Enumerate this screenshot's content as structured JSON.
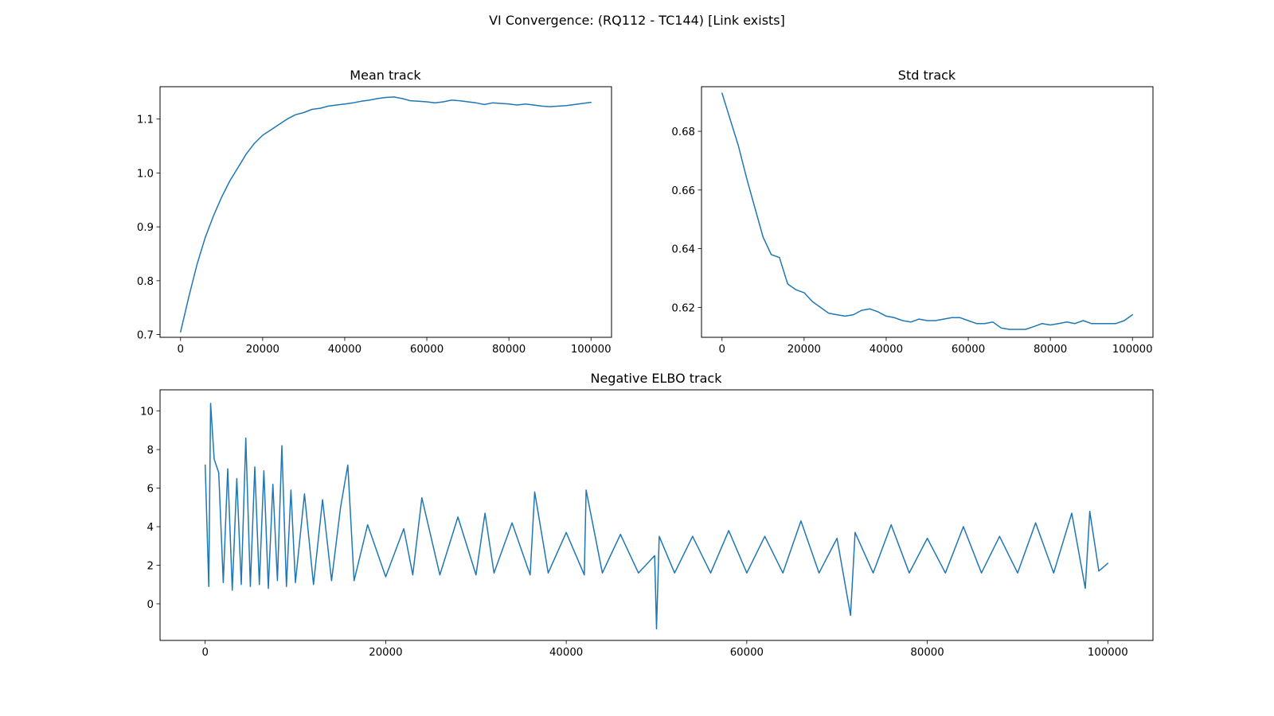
{
  "figure": {
    "title": "VI Convergence: (RQ112 - TC144) [Link exists]",
    "line_color": "#1f77b4",
    "background": "#ffffff"
  },
  "chart_data": [
    {
      "type": "line",
      "title": "Mean track",
      "xlabel": "",
      "ylabel": "",
      "xlim": [
        -5000,
        105000
      ],
      "ylim": [
        0.695,
        1.16
      ],
      "xticks": [
        0,
        20000,
        40000,
        60000,
        80000,
        100000
      ],
      "xtick_labels": [
        "0",
        "20000",
        "40000",
        "60000",
        "80000",
        "100000"
      ],
      "yticks": [
        0.7,
        0.8,
        0.9,
        1.0,
        1.1
      ],
      "ytick_labels": [
        "0.7",
        "0.8",
        "0.9",
        "1.0",
        "1.1"
      ],
      "grid": false,
      "series": [
        {
          "x": [
            0,
            2000,
            4000,
            6000,
            8000,
            10000,
            12000,
            14000,
            16000,
            18000,
            20000,
            22000,
            24000,
            26000,
            28000,
            30000,
            32000,
            34000,
            36000,
            38000,
            40000,
            42000,
            44000,
            46000,
            48000,
            50000,
            52000,
            54000,
            56000,
            58000,
            60000,
            62000,
            64000,
            66000,
            68000,
            70000,
            72000,
            74000,
            76000,
            78000,
            80000,
            82000,
            84000,
            86000,
            88000,
            90000,
            92000,
            94000,
            96000,
            98000,
            100000
          ],
          "y": [
            0.705,
            0.77,
            0.83,
            0.88,
            0.92,
            0.955,
            0.985,
            1.01,
            1.035,
            1.055,
            1.07,
            1.08,
            1.09,
            1.1,
            1.108,
            1.112,
            1.118,
            1.12,
            1.124,
            1.126,
            1.128,
            1.13,
            1.133,
            1.135,
            1.138,
            1.14,
            1.141,
            1.138,
            1.134,
            1.133,
            1.132,
            1.13,
            1.132,
            1.135,
            1.134,
            1.132,
            1.13,
            1.127,
            1.13,
            1.129,
            1.128,
            1.126,
            1.128,
            1.126,
            1.124,
            1.123,
            1.124,
            1.125,
            1.127,
            1.129,
            1.131
          ]
        }
      ]
    },
    {
      "type": "line",
      "title": "Std track",
      "xlabel": "",
      "ylabel": "",
      "xlim": [
        -5000,
        105000
      ],
      "ylim": [
        0.6098,
        0.6952
      ],
      "xticks": [
        0,
        20000,
        40000,
        60000,
        80000,
        100000
      ],
      "xtick_labels": [
        "0",
        "20000",
        "40000",
        "60000",
        "80000",
        "100000"
      ],
      "yticks": [
        0.62,
        0.64,
        0.66,
        0.68
      ],
      "ytick_labels": [
        "0.62",
        "0.64",
        "0.66",
        "0.68"
      ],
      "grid": false,
      "series": [
        {
          "x": [
            0,
            2000,
            4000,
            6000,
            8000,
            10000,
            12000,
            14000,
            16000,
            18000,
            20000,
            22000,
            24000,
            26000,
            28000,
            30000,
            32000,
            34000,
            36000,
            38000,
            40000,
            42000,
            44000,
            46000,
            48000,
            50000,
            52000,
            54000,
            56000,
            58000,
            60000,
            62000,
            64000,
            66000,
            68000,
            70000,
            72000,
            74000,
            76000,
            78000,
            80000,
            82000,
            84000,
            86000,
            88000,
            90000,
            92000,
            94000,
            96000,
            98000,
            100000
          ],
          "y": [
            0.693,
            0.684,
            0.675,
            0.664,
            0.654,
            0.644,
            0.638,
            0.637,
            0.628,
            0.626,
            0.625,
            0.622,
            0.62,
            0.618,
            0.6175,
            0.617,
            0.6175,
            0.619,
            0.6195,
            0.6185,
            0.617,
            0.6165,
            0.6155,
            0.615,
            0.616,
            0.6155,
            0.6155,
            0.616,
            0.6165,
            0.6165,
            0.6155,
            0.6145,
            0.6145,
            0.615,
            0.613,
            0.6125,
            0.6125,
            0.6125,
            0.6135,
            0.6145,
            0.614,
            0.6145,
            0.615,
            0.6145,
            0.6155,
            0.6145,
            0.6145,
            0.6145,
            0.6145,
            0.6155,
            0.6175
          ]
        }
      ]
    },
    {
      "type": "line",
      "title": "Negative ELBO track",
      "xlabel": "",
      "ylabel": "",
      "xlim": [
        -5000,
        105000
      ],
      "ylim": [
        -1.9,
        11.1
      ],
      "xticks": [
        0,
        20000,
        40000,
        60000,
        80000,
        100000
      ],
      "xtick_labels": [
        "0",
        "20000",
        "40000",
        "60000",
        "80000",
        "100000"
      ],
      "yticks": [
        0,
        2,
        4,
        6,
        8,
        10
      ],
      "ytick_labels": [
        "0",
        "2",
        "4",
        "6",
        "8",
        "10"
      ],
      "grid": false,
      "series": [
        {
          "x": [
            0,
            400,
            600,
            1000,
            1500,
            2000,
            2500,
            3000,
            3500,
            4000,
            4500,
            5000,
            5500,
            6000,
            6500,
            7000,
            7500,
            8000,
            8500,
            9000,
            9500,
            10000,
            11000,
            12000,
            13000,
            14000,
            15000,
            15800,
            16500,
            18000,
            20000,
            22000,
            23000,
            24000,
            26000,
            28000,
            30000,
            31000,
            32000,
            34000,
            36000,
            36500,
            38000,
            40000,
            42000,
            42200,
            44000,
            46000,
            48000,
            49800,
            50000,
            50300,
            52000,
            54000,
            56000,
            58000,
            60000,
            62000,
            64000,
            66000,
            68000,
            70000,
            71500,
            72000,
            74000,
            76000,
            78000,
            80000,
            82000,
            84000,
            86000,
            88000,
            90000,
            92000,
            94000,
            96000,
            97500,
            98000,
            99000,
            100000
          ],
          "y": [
            7.2,
            0.9,
            10.4,
            7.5,
            6.8,
            1.1,
            7.0,
            0.7,
            6.5,
            1.0,
            8.6,
            0.9,
            7.1,
            1.0,
            6.9,
            0.8,
            6.2,
            1.2,
            8.2,
            0.9,
            5.9,
            1.1,
            5.7,
            1.0,
            5.4,
            1.2,
            5.0,
            7.2,
            1.2,
            4.1,
            1.4,
            3.9,
            1.5,
            5.5,
            1.5,
            4.5,
            1.5,
            4.7,
            1.6,
            4.2,
            1.5,
            5.8,
            1.6,
            3.7,
            1.5,
            5.9,
            1.6,
            3.6,
            1.6,
            2.5,
            -1.3,
            3.5,
            1.6,
            3.5,
            1.6,
            3.8,
            1.6,
            3.5,
            1.6,
            4.3,
            1.6,
            3.4,
            -0.6,
            3.7,
            1.6,
            4.1,
            1.6,
            3.4,
            1.6,
            4.0,
            1.6,
            3.5,
            1.6,
            4.2,
            1.6,
            4.7,
            0.8,
            4.8,
            1.7,
            2.1
          ]
        }
      ]
    }
  ]
}
